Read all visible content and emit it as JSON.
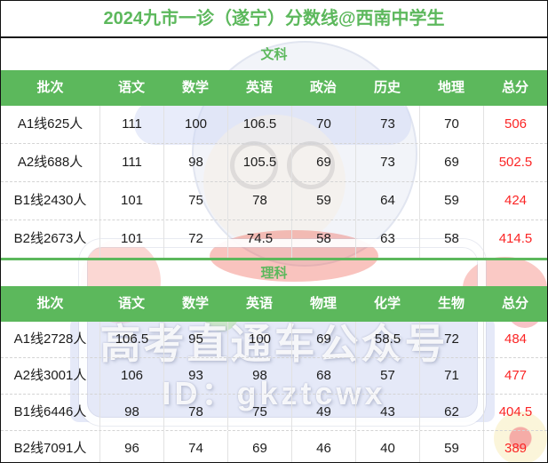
{
  "title": "2024九市一诊（遂宁）分数线@西南中学生",
  "colors": {
    "green": "#5cb85c",
    "red": "#fb2525"
  },
  "sections": [
    {
      "label": "文科",
      "headers": [
        "批次",
        "语文",
        "数学",
        "英语",
        "政治",
        "历史",
        "地理",
        "总分"
      ],
      "rows": [
        [
          "A1线625人",
          "111",
          "100",
          "106.5",
          "70",
          "73",
          "70",
          "506"
        ],
        [
          "A2线688人",
          "111",
          "98",
          "105.5",
          "69",
          "73",
          "69",
          "502.5"
        ],
        [
          "B1线2430人",
          "101",
          "75",
          "78",
          "59",
          "64",
          "59",
          "424"
        ],
        [
          "B2线2673人",
          "101",
          "72",
          "74.5",
          "58",
          "63",
          "58",
          "414.5"
        ]
      ]
    },
    {
      "label": "理科",
      "headers": [
        "批次",
        "语文",
        "数学",
        "英语",
        "物理",
        "化学",
        "生物",
        "总分"
      ],
      "rows": [
        [
          "A1线2728人",
          "106.5",
          "95",
          "100",
          "69",
          "58.5",
          "72",
          "484"
        ],
        [
          "A2线3001人",
          "106",
          "93",
          "98",
          "68",
          "57",
          "71",
          "477"
        ],
        [
          "B1线6446人",
          "98",
          "78",
          "75",
          "49",
          "43",
          "62",
          "404.5"
        ],
        [
          "B2线7091人",
          "96",
          "74",
          "69",
          "46",
          "40",
          "59",
          "389"
        ]
      ]
    }
  ],
  "watermark": {
    "line1": "高考直通车公众号",
    "line2": "ID：gkztcwx"
  }
}
